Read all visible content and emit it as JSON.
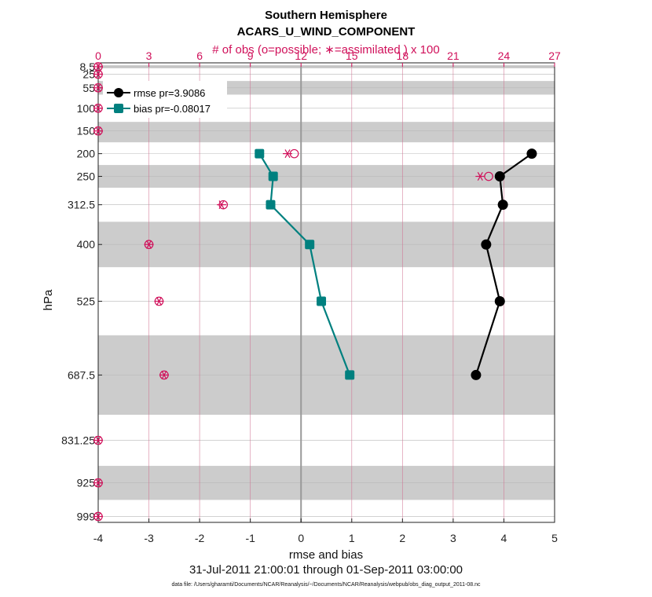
{
  "title": "Southern Hemisphere",
  "subtitle": "ACARS_U_WIND_COMPONENT",
  "top_axis_label": "# of obs (o=possible; ∗=assimilated ) x 100",
  "xlabel": "rmse and bias",
  "ylabel": "hPa",
  "date_range": "31-Jul-2011 21:00:01 through 01-Sep-2011 03:00:00",
  "footnote": "data file: /Users/gharamti/Documents/NCAR/Reanalysis/~/Documents/NCAR/Reanalysis/webpub/obs_diag_output_2011-08.nc",
  "colors": {
    "rmse": "#000000",
    "bias": "#00807f",
    "obs": "#d0105a",
    "band": "#cccccc",
    "grid": "#d07090"
  },
  "chart_data": {
    "type": "line",
    "xlim": [
      -4,
      5
    ],
    "x_ticks": [
      -4,
      -3,
      -2,
      -1,
      0,
      1,
      2,
      3,
      4,
      5
    ],
    "top_xlim": [
      0,
      27
    ],
    "top_ticks": [
      0,
      3,
      6,
      9,
      12,
      15,
      18,
      21,
      24,
      27
    ],
    "y_scale": "linear, inverted",
    "y_ticks": [
      {
        "value": 8.5,
        "label": "8.5"
      },
      {
        "value": 25,
        "label": "25"
      },
      {
        "value": 55,
        "label": "55"
      },
      {
        "value": 100,
        "label": "100"
      },
      {
        "value": 150,
        "label": "150"
      },
      {
        "value": 200,
        "label": "200"
      },
      {
        "value": 250,
        "label": "250"
      },
      {
        "value": 312.5,
        "label": "312.5"
      },
      {
        "value": 400,
        "label": "400"
      },
      {
        "value": 525,
        "label": "525"
      },
      {
        "value": 687.5,
        "label": "687.5"
      },
      {
        "value": 831.25,
        "label": "831.25"
      },
      {
        "value": 925,
        "label": "925"
      },
      {
        "value": 999,
        "label": "999"
      }
    ],
    "layer_bands_hPa": [
      [
        5,
        12
      ],
      [
        40,
        70
      ],
      [
        130,
        175
      ],
      [
        225,
        275
      ],
      [
        350,
        450
      ],
      [
        600,
        775
      ],
      [
        887.5,
        962.5
      ]
    ],
    "series": [
      {
        "name": "rmse pr=3.9086",
        "levels": [
          200,
          250,
          312.5,
          400,
          525,
          687.5
        ],
        "values": [
          4.55,
          3.92,
          3.98,
          3.65,
          3.92,
          3.45
        ]
      },
      {
        "name": "bias pr=-0.08017",
        "levels": [
          200,
          250,
          312.5,
          400,
          525,
          687.5
        ],
        "values": [
          -0.82,
          -0.55,
          -0.6,
          0.17,
          0.4,
          0.96
        ]
      }
    ],
    "obs_counts": {
      "levels": [
        8.5,
        25,
        55,
        100,
        150,
        200,
        250,
        312.5,
        400,
        525,
        687.5,
        831.25,
        925,
        999
      ],
      "possible": [
        0,
        0,
        0,
        0,
        0,
        11.6,
        23.1,
        7.4,
        3.0,
        3.6,
        3.9,
        0,
        0,
        0
      ],
      "assimilated": [
        0,
        0,
        0,
        0,
        0,
        11.2,
        22.6,
        7.3,
        3.0,
        3.6,
        3.9,
        0,
        0,
        0
      ]
    },
    "legend_position": "top-left"
  }
}
